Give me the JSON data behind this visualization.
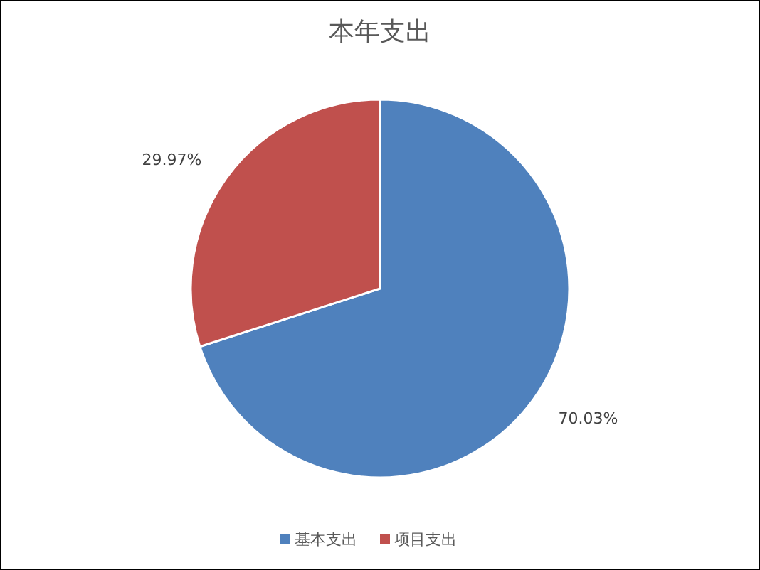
{
  "chart_data": {
    "type": "pie",
    "title": "本年支出",
    "categories": [
      "基本支出",
      "项目支出"
    ],
    "values": [
      70.03,
      29.97
    ],
    "colors": [
      "#4f81bd",
      "#c0504d"
    ],
    "value_labels": [
      "70.03%",
      "29.97%"
    ],
    "legend": "bottom"
  }
}
